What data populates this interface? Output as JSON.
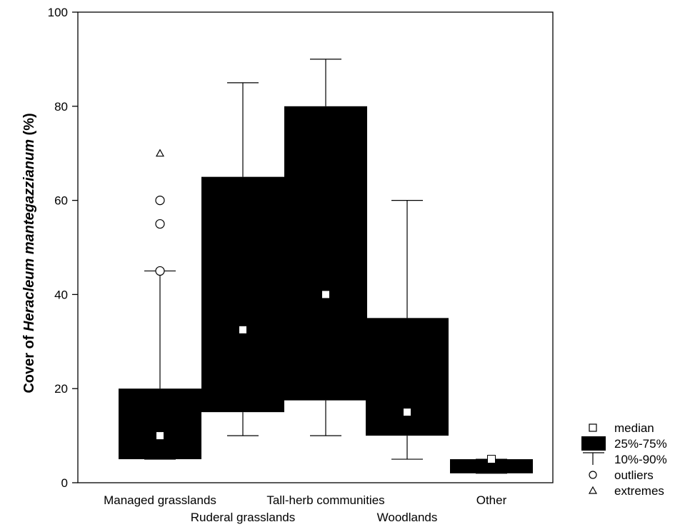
{
  "chart_data": {
    "type": "box",
    "ylabel": {
      "prefix": "Cover of ",
      "species": "Heracleum mantegazzianum",
      "suffix": " (%)"
    },
    "xlabel": "",
    "ylim": [
      0,
      100
    ],
    "yticks": [
      0,
      20,
      40,
      60,
      80,
      100
    ],
    "grid": false,
    "legend_position": "bottom-right",
    "colors": {
      "box": "#000000",
      "median": "#ffffff",
      "axis": "#000000"
    },
    "categories": [
      "Managed grasslands",
      "Ruderal grasslands",
      "Tall-herb communities",
      "Woodlands",
      "Other"
    ],
    "boxes": [
      {
        "category": "Managed grasslands",
        "p10": 5,
        "q1": 5,
        "median": 10,
        "q3": 20,
        "p90": 45,
        "outliers": [
          45,
          55,
          60
        ],
        "extremes": [
          70
        ]
      },
      {
        "category": "Ruderal grasslands",
        "p10": 10,
        "q1": 15,
        "median": 32.5,
        "q3": 65,
        "p90": 85,
        "outliers": [],
        "extremes": []
      },
      {
        "category": "Tall-herb communities",
        "p10": 10,
        "q1": 17.5,
        "median": 40,
        "q3": 80,
        "p90": 90,
        "outliers": [],
        "extremes": []
      },
      {
        "category": "Woodlands",
        "p10": 5,
        "q1": 10,
        "median": 15,
        "q3": 35,
        "p90": 60,
        "outliers": [],
        "extremes": []
      },
      {
        "category": "Other",
        "p10": 2,
        "q1": 2,
        "median": 5,
        "q3": 5,
        "p90": 5,
        "outliers": [],
        "extremes": []
      }
    ],
    "legend": [
      {
        "symbol": "median",
        "label": "median"
      },
      {
        "symbol": "box",
        "label": "25%-75%"
      },
      {
        "symbol": "whisker",
        "label": "10%-90%"
      },
      {
        "symbol": "outlier",
        "label": "outliers"
      },
      {
        "symbol": "extreme",
        "label": "extremes"
      }
    ]
  }
}
